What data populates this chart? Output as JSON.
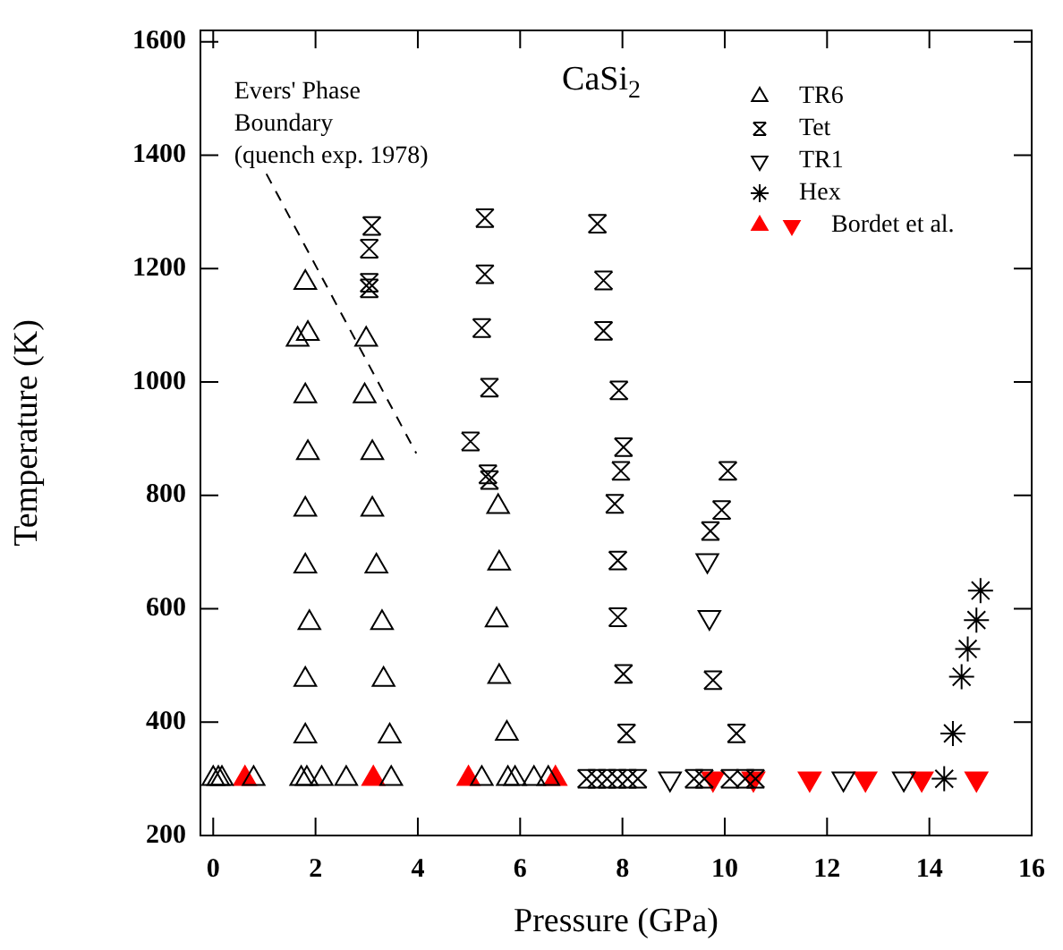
{
  "chart_data": {
    "type": "scatter",
    "xlabel": "Pressure (GPa)",
    "ylabel": "Temperature (K)",
    "xlim": [
      -0.25,
      16
    ],
    "xticks": [
      0,
      2,
      4,
      6,
      8,
      10,
      12,
      14,
      16
    ],
    "ylim": [
      200,
      1620
    ],
    "yticks": [
      200,
      400,
      600,
      800,
      1000,
      1200,
      1400,
      1600
    ],
    "grid": false,
    "legend": "top right",
    "annotations": [
      "CaSi$_{2}$",
      {
        "text": "Evers' Phase\nBoundary\n(quench exp. 1978)",
        "x": 1.04,
        "y": 1367
      }
    ],
    "series": [
      {
        "name": "TR6",
        "marker": "triangle",
        "color": "#000000",
        "x": [
          0.0,
          0.1,
          0.17,
          0.79,
          1.72,
          1.83,
          2.12,
          2.6,
          3.48,
          5.25,
          5.76,
          5.9,
          6.27,
          6.55,
          1.8,
          1.65,
          1.85,
          1.8,
          1.85,
          1.8,
          1.8,
          1.88,
          1.8,
          1.8,
          2.99,
          2.96,
          3.11,
          3.11,
          3.19,
          3.3,
          3.33,
          3.45,
          5.57,
          5.59,
          5.54,
          5.59,
          5.74
        ],
        "values": [
          300,
          300,
          300,
          300,
          300,
          300,
          300,
          300,
          300,
          300,
          300,
          300,
          300,
          300,
          1175,
          1075,
          1085,
          975,
          875,
          775,
          675,
          575,
          475,
          375,
          1075,
          975,
          875,
          775,
          675,
          575,
          475,
          375,
          780,
          680,
          580,
          480,
          380
        ]
      },
      {
        "name": "Tet",
        "color": "#000000",
        "x": [
          3.1,
          3.05,
          3.05,
          3.05,
          5.03,
          5.31,
          5.31,
          5.25,
          5.4,
          5.37,
          5.4,
          7.51,
          7.63,
          7.63,
          7.93,
          8.02,
          7.97,
          7.85,
          7.91,
          7.91,
          8.02,
          8.08,
          10.06,
          9.94,
          9.72,
          9.77,
          10.23,
          7.3,
          7.5,
          7.7,
          7.9,
          8.1,
          8.3,
          9.4,
          9.6,
          10.1,
          10.4,
          10.6
        ],
        "values": [
          1275,
          1235,
          1175,
          1165,
          895,
          1289,
          1190,
          1095,
          990,
          837,
          827,
          1279,
          1179,
          1090,
          985,
          885,
          843,
          785,
          685,
          585,
          485,
          380,
          843,
          774,
          737,
          474,
          380,
          300,
          300,
          300,
          300,
          300,
          300,
          300,
          300,
          300,
          300,
          300
        ]
      },
      {
        "name": "TR1",
        "marker": "triangle-down",
        "color": "#000000",
        "x": [
          9.66,
          9.7,
          8.93,
          12.32,
          13.5
        ],
        "values": [
          685,
          585,
          300,
          300,
          300
        ]
      },
      {
        "name": "Hex",
        "marker": "cross",
        "color": "#000000",
        "x": [
          15.0,
          14.92,
          14.75,
          14.63,
          14.46,
          14.29
        ],
        "values": [
          632,
          580,
          529,
          480,
          380,
          300
        ]
      },
      {
        "name": "Bordet et al.",
        "marker": "triangle-filled",
        "color": "#ff0000",
        "x": [
          0.62,
          3.13,
          4.99,
          6.69
        ],
        "values": [
          300,
          300,
          300,
          300
        ]
      },
      {
        "marker": "triangle-down-filled",
        "color": "#ff0000",
        "x": [
          9.77,
          10.56,
          11.66,
          12.75,
          13.85,
          14.92
        ],
        "values": [
          300,
          300,
          300,
          300,
          300,
          300
        ]
      },
      {
        "type": "line",
        "line_style": "dashed",
        "color": "#000000",
        "x": [
          1.04,
          3.97
        ],
        "values": [
          1367,
          874
        ]
      }
    ]
  }
}
